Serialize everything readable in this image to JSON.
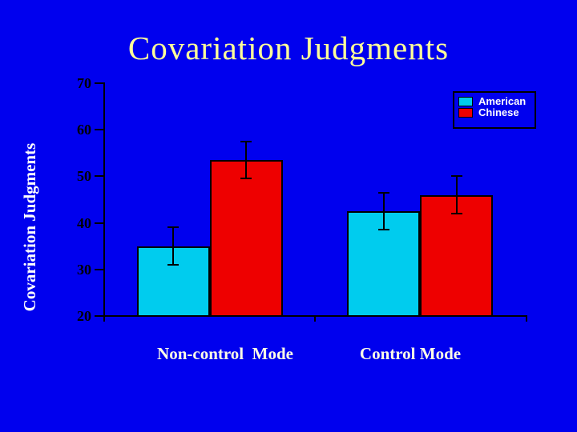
{
  "slide": {
    "title": "Covariation Judgments",
    "background_color": "#0000EE"
  },
  "chart_data": {
    "type": "bar",
    "title": "Covariation Judgments",
    "categories": [
      "Non-control  Mode",
      "Control Mode"
    ],
    "series": [
      {
        "name": "American",
        "color": "#00CCEE",
        "values": [
          35,
          42.5
        ],
        "errors": [
          4,
          4
        ]
      },
      {
        "name": "Chinese",
        "color": "#EE0000",
        "values": [
          53.5,
          46
        ],
        "errors": [
          4,
          4
        ]
      }
    ],
    "xlabel": "",
    "ylabel": "Covariation Judgments",
    "ylim": [
      20,
      70
    ],
    "yticks": [
      20,
      30,
      40,
      50,
      60,
      70
    ],
    "grid": false,
    "legend_position": "top-right",
    "error_bars": true,
    "colors": {
      "title_text": "#FFFF99",
      "ylabel_text": "#FFFFFF",
      "ytick_text": "#000000",
      "category_text": "#FFFFE6",
      "legend_text": "#FFFFFF",
      "axis": "#000000",
      "background": "#0000EE"
    }
  }
}
